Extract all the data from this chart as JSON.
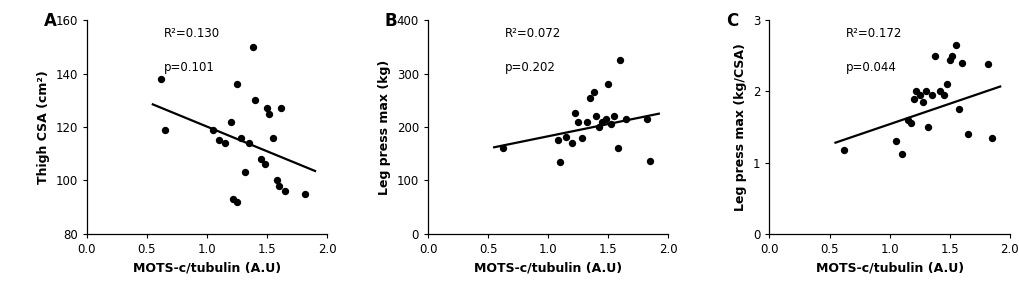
{
  "panel_A": {
    "label": "A",
    "xlabel": "MOTS-c/tubulin (A.U)",
    "ylabel": "Thigh CSA (cm²)",
    "xlim": [
      0.0,
      2.0
    ],
    "ylim": [
      80,
      160
    ],
    "xticks": [
      0.0,
      0.5,
      1.0,
      1.5,
      2.0
    ],
    "yticks": [
      80,
      100,
      120,
      140,
      160
    ],
    "r2": "R²=0.130",
    "p": "p=0.101",
    "scatter_x": [
      0.62,
      0.65,
      1.05,
      1.1,
      1.15,
      1.2,
      1.22,
      1.25,
      1.25,
      1.28,
      1.32,
      1.35,
      1.38,
      1.4,
      1.45,
      1.48,
      1.5,
      1.52,
      1.55,
      1.58,
      1.6,
      1.62,
      1.65,
      1.82
    ],
    "scatter_y": [
      138,
      119,
      119,
      115,
      114,
      122,
      93,
      92,
      136,
      116,
      103,
      114,
      150,
      130,
      108,
      106,
      127,
      125,
      116,
      100,
      98,
      127,
      96,
      95
    ],
    "line_x": [
      0.55,
      1.9
    ],
    "line_y": [
      128.5,
      103.5
    ]
  },
  "panel_B": {
    "label": "B",
    "xlabel": "MOTS-c/tubulin (A.U)",
    "ylabel": "Leg press max (kg)",
    "xlim": [
      0.0,
      2.0
    ],
    "ylim": [
      0,
      400
    ],
    "xticks": [
      0.0,
      0.5,
      1.0,
      1.5,
      2.0
    ],
    "yticks": [
      0,
      100,
      200,
      300,
      400
    ],
    "r2": "R²=0.072",
    "p": "p=0.202",
    "scatter_x": [
      0.62,
      1.08,
      1.1,
      1.15,
      1.2,
      1.22,
      1.25,
      1.28,
      1.32,
      1.35,
      1.38,
      1.4,
      1.42,
      1.45,
      1.48,
      1.5,
      1.52,
      1.55,
      1.58,
      1.6,
      1.65,
      1.82,
      1.85
    ],
    "scatter_y": [
      160,
      175,
      135,
      182,
      170,
      226,
      210,
      180,
      210,
      255,
      265,
      220,
      200,
      210,
      215,
      280,
      205,
      220,
      160,
      325,
      215,
      215,
      136
    ],
    "line_x": [
      0.55,
      1.92
    ],
    "line_y": [
      162.0,
      225.0
    ]
  },
  "panel_C": {
    "label": "C",
    "xlabel": "MOTS-c/tubulin (A.U)",
    "ylabel": "Leg press max (kg/CSA)",
    "xlim": [
      0.0,
      2.0
    ],
    "ylim": [
      0,
      3
    ],
    "xticks": [
      0.0,
      0.5,
      1.0,
      1.5,
      2.0
    ],
    "yticks": [
      0,
      1,
      2,
      3
    ],
    "r2": "R²=0.172",
    "p": "p=0.044",
    "scatter_x": [
      0.62,
      1.05,
      1.1,
      1.15,
      1.18,
      1.2,
      1.22,
      1.25,
      1.28,
      1.3,
      1.32,
      1.35,
      1.38,
      1.42,
      1.45,
      1.48,
      1.5,
      1.52,
      1.55,
      1.58,
      1.6,
      1.65,
      1.82,
      1.85
    ],
    "scatter_y": [
      1.18,
      1.3,
      1.12,
      1.6,
      1.55,
      1.9,
      2.0,
      1.95,
      1.85,
      2.0,
      1.5,
      1.95,
      2.5,
      2.0,
      1.95,
      2.1,
      2.45,
      2.5,
      2.65,
      1.75,
      2.4,
      1.4,
      2.38,
      1.35
    ],
    "line_x": [
      0.55,
      1.92
    ],
    "line_y": [
      1.28,
      2.07
    ]
  },
  "marker_size": 28,
  "marker_color": "black",
  "line_color": "black",
  "line_width": 1.6,
  "font_size_label": 9,
  "font_size_tick": 8.5,
  "font_size_panel": 12,
  "font_size_stat": 8.5
}
